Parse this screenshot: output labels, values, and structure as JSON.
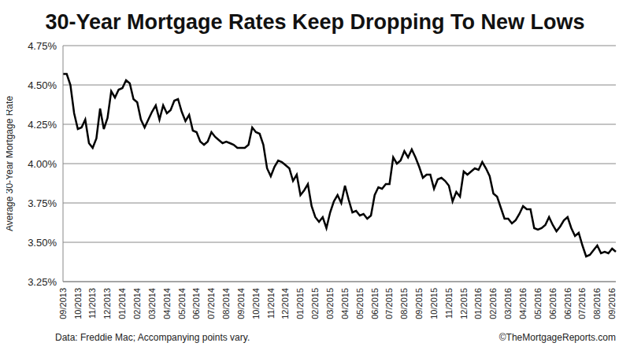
{
  "chart_data": {
    "type": "line",
    "title": "30-Year Mortgage Rates Keep Dropping To New Lows",
    "y_label": "Average 30-Year Mortgage Rate",
    "annotations": [
      "Data: Freddie Mac; Accompanying points vary.",
      "©TheMortgageReports.com"
    ],
    "categories": [
      "09/2013",
      null,
      null,
      null,
      "10/2013",
      null,
      null,
      null,
      "11/2013",
      null,
      null,
      null,
      "12/2013",
      null,
      null,
      null,
      "01/2014",
      null,
      null,
      null,
      "02/2014",
      null,
      null,
      null,
      "03/2014",
      null,
      null,
      null,
      "04/2014",
      null,
      null,
      null,
      "05/2014",
      null,
      null,
      null,
      "06/2014",
      null,
      null,
      null,
      "07/2014",
      null,
      null,
      null,
      "08/2014",
      null,
      null,
      null,
      "09/2014",
      null,
      null,
      null,
      "10/2014",
      null,
      null,
      null,
      "11/2014",
      null,
      null,
      null,
      "12/2014",
      null,
      null,
      null,
      "01/2015",
      null,
      null,
      null,
      "02/2015",
      null,
      null,
      null,
      "03/2015",
      null,
      null,
      null,
      "04/2015",
      null,
      null,
      null,
      "05/2015",
      null,
      null,
      null,
      "06/2015",
      null,
      null,
      null,
      "07/2015",
      null,
      null,
      null,
      "08/2015",
      null,
      null,
      null,
      "09/2015",
      null,
      null,
      null,
      "10/2015",
      null,
      null,
      null,
      "11/2015",
      null,
      null,
      null,
      "12/2015",
      null,
      null,
      null,
      "01/2016",
      null,
      null,
      null,
      "02/2016",
      null,
      null,
      null,
      "03/2016",
      null,
      null,
      null,
      "04/2016",
      null,
      null,
      null,
      "05/2016",
      null,
      null,
      null,
      "06/2016",
      null,
      null,
      null,
      "06/2016",
      null,
      null,
      null,
      "07/2016",
      null,
      null,
      null,
      "08/2016",
      null,
      null,
      null,
      "09/2016",
      null
    ],
    "values": [
      4.57,
      4.57,
      4.5,
      4.32,
      4.22,
      4.23,
      4.28,
      4.13,
      4.1,
      4.16,
      4.35,
      4.22,
      4.29,
      4.46,
      4.42,
      4.47,
      4.48,
      4.53,
      4.51,
      4.41,
      4.39,
      4.28,
      4.23,
      4.28,
      4.33,
      4.37,
      4.28,
      4.37,
      4.32,
      4.34,
      4.4,
      4.41,
      4.33,
      4.27,
      4.31,
      4.21,
      4.2,
      4.14,
      4.12,
      4.14,
      4.2,
      4.17,
      4.15,
      4.13,
      4.14,
      4.13,
      4.12,
      4.1,
      4.1,
      4.1,
      4.12,
      4.23,
      4.2,
      4.19,
      4.12,
      3.97,
      3.92,
      3.98,
      4.02,
      4.01,
      3.99,
      3.97,
      3.89,
      3.93,
      3.8,
      3.83,
      3.87,
      3.73,
      3.66,
      3.63,
      3.66,
      3.59,
      3.69,
      3.76,
      3.8,
      3.75,
      3.86,
      3.77,
      3.69,
      3.7,
      3.67,
      3.68,
      3.65,
      3.67,
      3.8,
      3.85,
      3.84,
      3.87,
      3.87,
      4.04,
      4.0,
      4.02,
      4.08,
      4.04,
      4.09,
      4.04,
      3.98,
      3.91,
      3.93,
      3.93,
      3.84,
      3.9,
      3.91,
      3.89,
      3.86,
      3.76,
      3.82,
      3.79,
      3.95,
      3.93,
      3.95,
      3.97,
      3.96,
      4.01,
      3.97,
      3.92,
      3.81,
      3.79,
      3.72,
      3.65,
      3.65,
      3.62,
      3.64,
      3.68,
      3.73,
      3.71,
      3.71,
      3.59,
      3.58,
      3.59,
      3.61,
      3.66,
      3.61,
      3.57,
      3.6,
      3.64,
      3.66,
      3.59,
      3.54,
      3.56,
      3.48,
      3.41,
      3.42,
      3.45,
      3.48,
      3.43,
      3.44,
      3.43,
      3.46,
      3.44
    ],
    "color": "#000000",
    "ylim": [
      3.25,
      4.75
    ],
    "yticks": [
      {
        "value": 3.25,
        "label": "3.25%"
      },
      {
        "value": 3.5,
        "label": "3.50%"
      },
      {
        "value": 3.75,
        "label": "3.75%"
      },
      {
        "value": 4.0,
        "label": "4.00%"
      },
      {
        "value": 4.25,
        "label": "4.25%"
      },
      {
        "value": 4.5,
        "label": "4.50%"
      },
      {
        "value": 4.75,
        "label": "4.75%"
      }
    ],
    "grid": true
  }
}
